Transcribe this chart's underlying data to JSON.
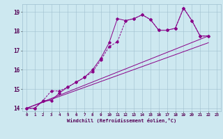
{
  "xlabel": "Windchill (Refroidissement éolien,°C)",
  "bg_color": "#cde8f0",
  "line_color": "#880088",
  "xlim": [
    -0.5,
    23.5
  ],
  "ylim": [
    13.85,
    19.4
  ],
  "yticks": [
    14,
    15,
    16,
    17,
    18,
    19
  ],
  "xticks": [
    0,
    1,
    2,
    3,
    4,
    5,
    6,
    7,
    8,
    9,
    10,
    11,
    12,
    13,
    14,
    15,
    16,
    17,
    18,
    19,
    20,
    21,
    22,
    23
  ],
  "series1": [
    [
      0,
      14.0
    ],
    [
      1,
      14.0
    ],
    [
      2,
      14.4
    ],
    [
      3,
      14.4
    ],
    [
      4,
      14.8
    ],
    [
      5,
      15.1
    ],
    [
      6,
      15.35
    ],
    [
      7,
      15.6
    ],
    [
      8,
      16.0
    ],
    [
      9,
      16.6
    ],
    [
      10,
      17.4
    ],
    [
      11,
      18.65
    ],
    [
      12,
      18.55
    ],
    [
      13,
      18.65
    ],
    [
      14,
      18.85
    ],
    [
      15,
      18.6
    ],
    [
      16,
      18.05
    ],
    [
      17,
      18.05
    ],
    [
      18,
      18.15
    ],
    [
      19,
      19.2
    ],
    [
      20,
      18.55
    ],
    [
      21,
      17.75
    ],
    [
      22,
      17.75
    ]
  ],
  "series2": [
    [
      0,
      14.0
    ],
    [
      1,
      14.0
    ],
    [
      2,
      14.4
    ],
    [
      3,
      14.9
    ],
    [
      4,
      14.9
    ],
    [
      5,
      15.1
    ],
    [
      6,
      15.35
    ],
    [
      7,
      15.6
    ],
    [
      8,
      15.9
    ],
    [
      9,
      16.5
    ],
    [
      10,
      17.2
    ],
    [
      11,
      17.45
    ],
    [
      12,
      18.55
    ],
    [
      13,
      18.65
    ],
    [
      14,
      18.85
    ],
    [
      15,
      18.6
    ],
    [
      16,
      18.05
    ],
    [
      17,
      18.05
    ],
    [
      18,
      18.15
    ],
    [
      19,
      19.2
    ],
    [
      20,
      18.55
    ],
    [
      21,
      17.75
    ],
    [
      22,
      17.75
    ]
  ],
  "line_straight1": [
    [
      0,
      14.0
    ],
    [
      22,
      17.75
    ]
  ],
  "line_straight2": [
    [
      0,
      14.0
    ],
    [
      22,
      17.4
    ]
  ]
}
